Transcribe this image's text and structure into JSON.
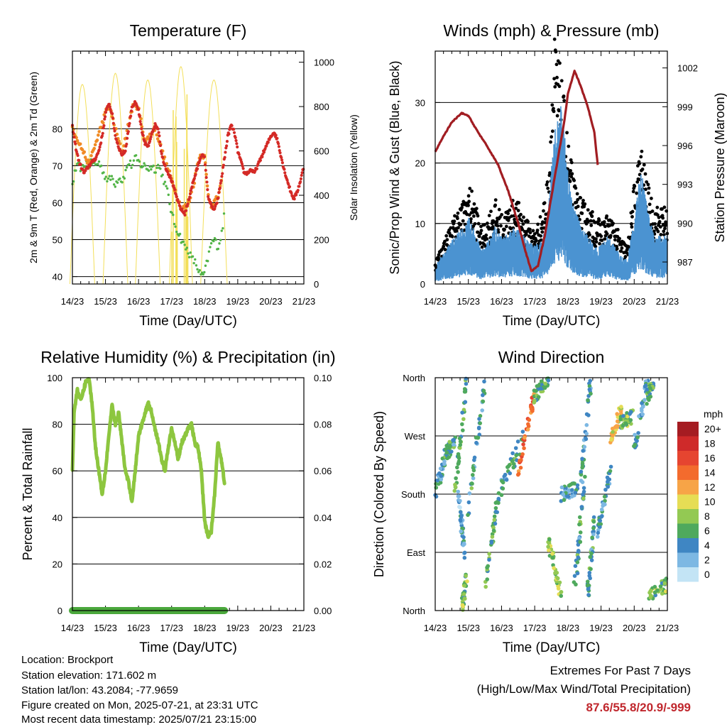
{
  "time_ticks": [
    "14/23",
    "15/23",
    "16/23",
    "17/23",
    "18/23",
    "19/23",
    "20/23",
    "21/23"
  ],
  "time_xlabel": "Time (Day/UTC)",
  "chart_data": [
    {
      "type": "line",
      "title": "Temperature (F)",
      "xlabel": "Time (Day/UTC)",
      "ylabel": "2m & 9m T (Red, Orange) & 2m Td (Green)",
      "y2label": "Solar Insolation (Yellow)",
      "xlim": [
        0,
        7
      ],
      "ylim": [
        38,
        101
      ],
      "y2lim": [
        0,
        1050
      ],
      "yticks": [
        40,
        50,
        60,
        70,
        80
      ],
      "y2ticks": [
        0,
        200,
        400,
        600,
        800,
        1000
      ],
      "grid": true,
      "colors": {
        "t2m": "#d42a26",
        "t9m": "#f08a24",
        "td": "#52b447",
        "solar": "#f3df5a"
      },
      "series": [
        {
          "name": "2m T",
          "x": [
            0,
            0.1,
            0.2,
            0.35,
            0.5,
            0.6,
            0.7,
            0.8,
            0.9,
            1.0,
            1.1,
            1.2,
            1.3,
            1.4,
            1.5,
            1.6,
            1.7,
            1.8,
            1.9,
            2.0,
            2.1,
            2.2,
            2.3,
            2.4,
            2.5,
            2.6,
            2.7,
            2.8,
            2.9,
            3.0,
            3.1,
            3.2,
            3.3,
            3.4,
            3.5,
            3.6,
            3.7,
            3.8,
            3.9,
            4.0,
            4.1,
            4.2,
            4.3,
            4.4,
            4.5,
            4.6,
            4.7,
            4.8,
            4.9,
            5.0,
            5.1,
            5.2,
            5.3,
            5.4,
            5.5,
            5.6,
            5.7,
            5.8,
            5.9,
            6.0,
            6.1,
            6.2,
            6.3,
            6.4,
            6.5,
            6.6,
            6.7,
            6.8,
            6.9,
            7.0
          ],
          "y": [
            80.5,
            75,
            71,
            68,
            70,
            71,
            72,
            74,
            78,
            84,
            87,
            84,
            78,
            75,
            73,
            74,
            80,
            86,
            87,
            85,
            79,
            76,
            75,
            79,
            81,
            80,
            73,
            70,
            68,
            66,
            63,
            60,
            58,
            57,
            60,
            64,
            67,
            70,
            73,
            72,
            62,
            59,
            58,
            61,
            66,
            72,
            78,
            81,
            79,
            74,
            71,
            68,
            68,
            69,
            68,
            70,
            72,
            74,
            76,
            78,
            79,
            77,
            73,
            69,
            66,
            63,
            61,
            63,
            66,
            70
          ]
        },
        {
          "name": "9m T",
          "x": [
            0,
            0.5,
            1.0,
            1.1,
            1.2,
            1.5,
            1.8,
            1.9,
            2.0,
            2.2,
            2.5,
            2.8,
            3.0,
            3.3,
            3.5,
            3.7,
            3.8,
            3.9,
            4.0,
            4.1,
            4.2,
            4.3,
            4.4,
            4.5
          ],
          "y": [
            80,
            70,
            84,
            86,
            83,
            73,
            85,
            86.5,
            85,
            76,
            80,
            71,
            66,
            58,
            59,
            66,
            71,
            73,
            72,
            62,
            59,
            60,
            61,
            65
          ]
        },
        {
          "name": "2m Td",
          "x": [
            0,
            0.1,
            0.2,
            0.3,
            0.4,
            0.5,
            0.6,
            0.7,
            0.8,
            0.9,
            1.0,
            1.1,
            1.2,
            1.3,
            1.4,
            1.5,
            1.6,
            1.7,
            1.8,
            1.9,
            2.0,
            2.1,
            2.2,
            2.3,
            2.4,
            2.5,
            2.6,
            2.7,
            2.8,
            2.9,
            3.0,
            3.1,
            3.2,
            3.3,
            3.4,
            3.5,
            3.6,
            3.7,
            3.8,
            3.9,
            4.0,
            4.1,
            4.2,
            4.3,
            4.4,
            4.5,
            4.6
          ],
          "y": [
            65,
            69,
            70,
            69,
            71,
            70,
            71,
            70,
            71,
            69,
            67,
            66,
            67,
            65,
            67,
            66,
            68,
            71,
            70,
            72,
            71,
            70,
            70,
            69,
            70,
            69,
            70,
            68,
            65,
            62,
            57,
            54,
            52,
            50,
            48,
            47,
            45,
            44,
            42,
            40,
            41,
            45,
            49,
            50,
            48,
            51,
            57
          ]
        },
        {
          "name": "Solar Insolation",
          "peaks": [
            {
              "x": 0.3,
              "w": 0.75,
              "y": 900
            },
            {
              "x": 1.3,
              "w": 0.75,
              "y": 950
            },
            {
              "x": 2.28,
              "w": 0.75,
              "y": 920
            },
            {
              "x": 3.28,
              "w": 0.7,
              "y": 980
            },
            {
              "x": 4.28,
              "w": 0.8,
              "y": 920
            }
          ]
        }
      ]
    },
    {
      "type": "scatter",
      "title": "Winds (mph) & Pressure (mb)",
      "xlabel": "Time (Day/UTC)",
      "ylabel": "Sonic/Prop Wind & Gust (Blue, Black)",
      "y2label": "Station Pressure (Maroon)",
      "xlim": [
        0,
        7
      ],
      "ylim": [
        0,
        38.5
      ],
      "y2lim": [
        985.3,
        1003.3
      ],
      "yticks": [
        0,
        10,
        20,
        30
      ],
      "y2ticks": [
        987,
        990,
        993,
        996,
        999,
        1002
      ],
      "grid": true,
      "colors": {
        "wind": "#4b93d1",
        "gust": "#000000",
        "pressure": "#a11d22"
      },
      "series": [
        {
          "name": "Wind",
          "x": [
            0,
            0.1,
            0.3,
            0.5,
            0.7,
            0.9,
            1.0,
            1.2,
            1.4,
            1.6,
            1.8,
            2.0,
            2.2,
            2.4,
            2.6,
            2.8,
            3.0,
            3.2,
            3.4,
            3.5,
            3.6,
            3.8,
            4.0,
            4.2,
            4.4,
            4.6,
            4.8,
            5.0,
            5.2,
            5.4,
            5.6,
            5.8,
            6.0,
            6.2,
            6.4,
            6.6,
            6.8,
            7.0
          ],
          "y": [
            1.5,
            2.5,
            3.5,
            4.5,
            5.5,
            6,
            7,
            5.5,
            3.5,
            4.5,
            6,
            5,
            5.5,
            6,
            5.5,
            4.5,
            4,
            4.5,
            7,
            12,
            16,
            19,
            12,
            8,
            6,
            5,
            4,
            4,
            5,
            4,
            3,
            2.5,
            7,
            12,
            8,
            5,
            5,
            5
          ]
        },
        {
          "name": "Gust",
          "x": [
            0,
            0.1,
            0.3,
            0.5,
            0.7,
            0.9,
            1.0,
            1.2,
            1.4,
            1.6,
            1.8,
            2.0,
            2.2,
            2.4,
            2.6,
            2.8,
            3.0,
            3.2,
            3.4,
            3.5,
            3.6,
            3.8,
            4.0,
            4.2,
            4.4,
            4.6,
            4.8,
            5.0,
            5.2,
            5.4,
            5.6,
            5.8,
            6.0,
            6.2,
            6.4,
            6.6,
            6.8,
            7.0
          ],
          "y": [
            3,
            4,
            6,
            8,
            10,
            11,
            13,
            11,
            7,
            9,
            11,
            9,
            10,
            11,
            10,
            8,
            7,
            9,
            14,
            24,
            32,
            27,
            19,
            13,
            11,
            10,
            9,
            8,
            9,
            8,
            6,
            5,
            13,
            18,
            13,
            10,
            10,
            10
          ]
        },
        {
          "name": "Pressure",
          "x": [
            0,
            0.2,
            0.5,
            0.8,
            1.0,
            1.3,
            1.6,
            1.9,
            2.2,
            2.5,
            2.7,
            2.9,
            3.1,
            3.3,
            3.5,
            3.7,
            3.9,
            4.0,
            4.2,
            4.4,
            4.6,
            4.8,
            4.9
          ],
          "y": [
            995.5,
            996.5,
            997.8,
            998.5,
            998.3,
            997,
            995.8,
            994.5,
            992.5,
            990,
            988,
            986.3,
            986.7,
            989,
            992,
            995,
            998,
            1000,
            1001.8,
            1000.5,
            999,
            997,
            994.5
          ]
        }
      ]
    },
    {
      "type": "line",
      "title": "Relative Humidity (%) & Precipitation (in)",
      "xlabel": "Time (Day/UTC)",
      "ylabel": "Percent & Total Rainfall",
      "xlim": [
        0,
        7
      ],
      "ylim": [
        0,
        100
      ],
      "y2lim": [
        0,
        0.1
      ],
      "yticks": [
        0,
        20,
        40,
        60,
        80,
        100
      ],
      "y2ticks": [
        "0.00",
        "0.02",
        "0.04",
        "0.06",
        "0.08",
        "0.10"
      ],
      "grid": true,
      "colors": {
        "rh": "#8dc63f",
        "precip": "#4aa83c"
      },
      "series": [
        {
          "name": "RH",
          "x": [
            0,
            0.05,
            0.15,
            0.25,
            0.4,
            0.5,
            0.6,
            0.7,
            0.8,
            0.9,
            1.0,
            1.1,
            1.2,
            1.3,
            1.4,
            1.5,
            1.6,
            1.7,
            1.8,
            1.9,
            2.0,
            2.1,
            2.2,
            2.3,
            2.4,
            2.5,
            2.6,
            2.7,
            2.8,
            2.9,
            3.0,
            3.1,
            3.2,
            3.3,
            3.4,
            3.5,
            3.6,
            3.7,
            3.8,
            3.9,
            4.0,
            4.1,
            4.2,
            4.3,
            4.4,
            4.5,
            4.6
          ],
          "y": [
            60,
            85,
            95,
            90,
            98,
            100,
            88,
            70,
            60,
            50,
            60,
            75,
            88,
            80,
            85,
            72,
            60,
            55,
            47,
            60,
            75,
            80,
            85,
            89,
            85,
            78,
            72,
            65,
            60,
            70,
            78,
            72,
            65,
            72,
            75,
            78,
            80,
            72,
            70,
            60,
            38,
            32,
            34,
            50,
            72,
            65,
            55
          ]
        },
        {
          "name": "Precipitation",
          "x": [
            0,
            4.6
          ],
          "y": [
            0,
            0
          ]
        }
      ]
    },
    {
      "type": "scatter",
      "title": "Wind Direction",
      "xlabel": "Time (Day/UTC)",
      "ylabel": "Direction (Colored By Speed)",
      "xlim": [
        0,
        7
      ],
      "ylim": [
        0,
        360
      ],
      "ytick_labels": [
        "North",
        "East",
        "South",
        "West",
        "North"
      ],
      "grid": true,
      "legend": {
        "title": "mph",
        "position": "right",
        "labels": [
          "20+",
          "18",
          "16",
          "14",
          "12",
          "10",
          "8",
          "6",
          "4",
          "2",
          "0"
        ],
        "colors": [
          "#a51c22",
          "#cf2a2a",
          "#e64530",
          "#f36b2d",
          "#f7a447",
          "#e6dd55",
          "#93c953",
          "#4fa95d",
          "#3f86c3",
          "#7db8e3",
          "#c3e4f5"
        ]
      },
      "streaks": [
        {
          "x0": 0.0,
          "y0": 180,
          "x1": 0.3,
          "y1": 240,
          "speed": 4
        },
        {
          "x0": 0.3,
          "y0": 240,
          "x1": 0.6,
          "y1": 260,
          "speed": 5
        },
        {
          "x0": 0.6,
          "y0": 180,
          "x1": 0.95,
          "y1": 360,
          "speed": 6
        },
        {
          "x0": 0.7,
          "y0": 180,
          "x1": 0.9,
          "y1": 80,
          "speed": 3
        },
        {
          "x0": 0.8,
          "y0": 0,
          "x1": 0.95,
          "y1": 60,
          "speed": 7
        },
        {
          "x0": 1.0,
          "y0": 150,
          "x1": 1.5,
          "y1": 360,
          "speed": 5
        },
        {
          "x0": 1.5,
          "y0": 30,
          "x1": 1.9,
          "y1": 180,
          "speed": 6
        },
        {
          "x0": 1.9,
          "y0": 180,
          "x1": 2.7,
          "y1": 270,
          "speed": 5
        },
        {
          "x0": 2.5,
          "y0": 210,
          "x1": 3.0,
          "y1": 340,
          "speed": 14
        },
        {
          "x0": 3.0,
          "y0": 330,
          "x1": 3.4,
          "y1": 360,
          "speed": 6
        },
        {
          "x0": 3.4,
          "y0": 110,
          "x1": 3.8,
          "y1": 20,
          "speed": 8
        },
        {
          "x0": 3.8,
          "y0": 180,
          "x1": 4.3,
          "y1": 190,
          "speed": 4
        },
        {
          "x0": 4.2,
          "y0": 30,
          "x1": 4.5,
          "y1": 200,
          "speed": 5
        },
        {
          "x0": 4.4,
          "y0": 200,
          "x1": 4.7,
          "y1": 360,
          "speed": 4
        },
        {
          "x0": 4.6,
          "y0": 20,
          "x1": 4.8,
          "y1": 150,
          "speed": 5
        },
        {
          "x0": 4.9,
          "y0": 120,
          "x1": 5.3,
          "y1": 220,
          "speed": 4
        },
        {
          "x0": 5.3,
          "y0": 260,
          "x1": 5.6,
          "y1": 310,
          "speed": 11
        },
        {
          "x0": 5.6,
          "y0": 290,
          "x1": 5.95,
          "y1": 300,
          "speed": 7
        },
        {
          "x0": 6.0,
          "y0": 250,
          "x1": 6.4,
          "y1": 360,
          "speed": 4
        },
        {
          "x0": 6.4,
          "y0": 330,
          "x1": 6.6,
          "y1": 360,
          "speed": 6
        },
        {
          "x0": 6.45,
          "y0": 20,
          "x1": 7.0,
          "y1": 40,
          "speed": 7
        }
      ]
    }
  ],
  "station_info": {
    "location": "Location: Brockport",
    "elevation": "Station elevation: 171.602 m",
    "latlon": "Station lat/lon: 43.2084; -77.9659",
    "created": "Figure created on Mon, 2025-07-21, at 23:31 UTC",
    "recent": "Most recent data timestamp: 2025/07/21 23:15:00"
  },
  "extremes": {
    "title": "Extremes For Past 7 Days",
    "subtitle": "(High/Low/Max Wind/Total Precipitation)",
    "values": "87.6/55.8/20.9/-999"
  }
}
